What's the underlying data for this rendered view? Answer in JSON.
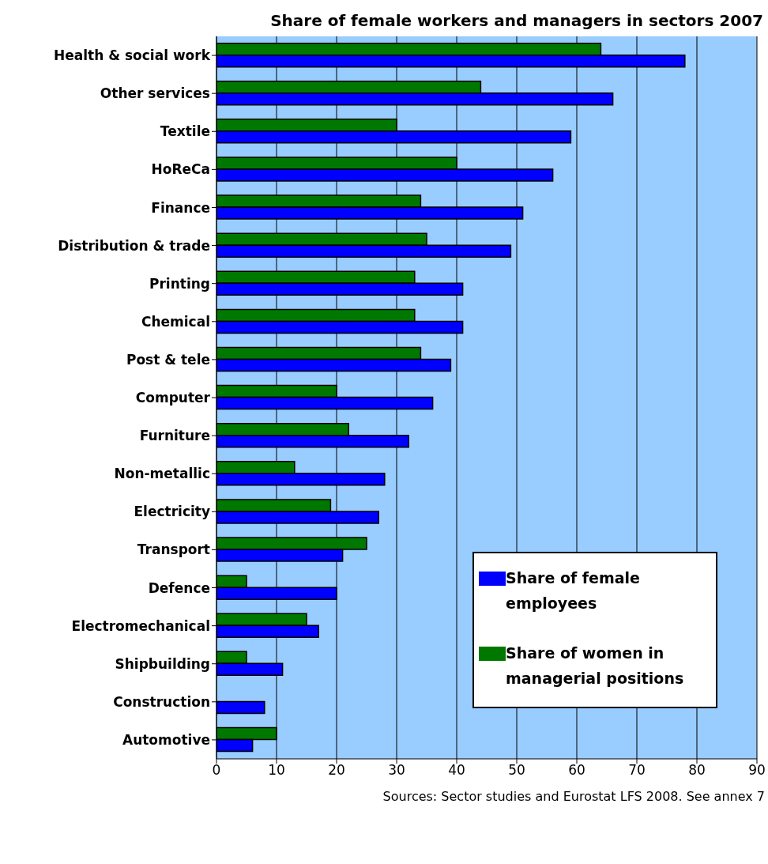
{
  "chart_data": {
    "type": "bar",
    "orientation": "horizontal",
    "title": "Share of female workers and managers in sectors 2007",
    "categories": [
      "Health & social work",
      "Other services",
      "Textile",
      "HoReCa",
      "Finance",
      "Distribution & trade",
      "Printing",
      "Chemical",
      "Post & tele",
      "Computer",
      "Furniture",
      "Non-metallic",
      "Electricity",
      "Transport",
      "Defence",
      "Electromechanical",
      "Shipbuilding",
      "Construction",
      "Automotive"
    ],
    "series": [
      {
        "name": "Share of female employees",
        "color": "#0000ff",
        "values": [
          78,
          66,
          59,
          56,
          51,
          49,
          41,
          41,
          39,
          36,
          32,
          28,
          27,
          21,
          20,
          17,
          11,
          8,
          6
        ]
      },
      {
        "name": "Share of women in managerial positions",
        "color": "#007800",
        "values": [
          64,
          44,
          30,
          40,
          34,
          35,
          33,
          33,
          34,
          20,
          22,
          13,
          19,
          25,
          5,
          15,
          5,
          null,
          10
        ]
      }
    ],
    "xlim": [
      0,
      90
    ],
    "xticks": [
      0,
      10,
      20,
      30,
      40,
      50,
      60,
      70,
      80,
      90
    ],
    "grid": "x",
    "legend": "bottom right",
    "annotations": [
      "Sources: Sector studies and Eurostat LFS 2008. See annex 7"
    ]
  }
}
